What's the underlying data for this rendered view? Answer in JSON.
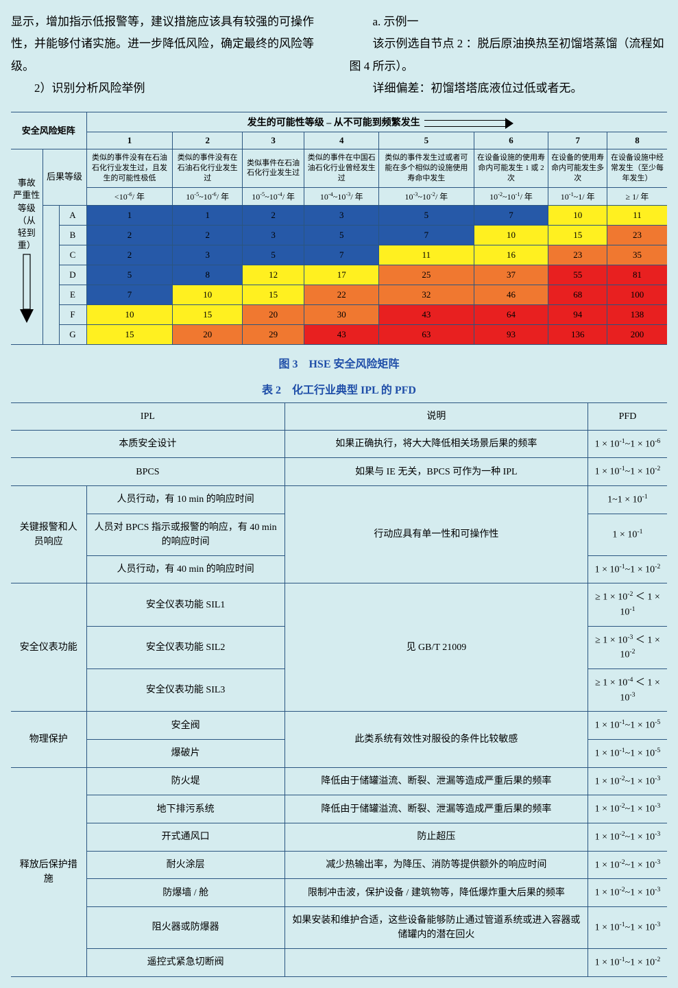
{
  "intro": {
    "left_p1": "显示，增加指示低报警等，建议措施应该具有较强的可操作性，并能够付诸实施。进一步降低风险，确定最终的风险等级。",
    "left_p2": "2）识别分析风险举例",
    "right_p1": "a. 示例一",
    "right_p2": "该示例选自节点 2 ：脱后原油换热至初馏塔蒸馏（流程如图 4 所示）。",
    "right_p3": "详细偏差：初馏塔塔底液位过低或者无。"
  },
  "matrix": {
    "corner_label": "安全风险矩阵",
    "top_header": "发生的可能性等级 – 从不可能到频繁发生",
    "col_nums": [
      "1",
      "2",
      "3",
      "4",
      "5",
      "6",
      "7",
      "8"
    ],
    "side_top_label": "后果等级",
    "side_axis_line1": "事故",
    "side_axis_line2": "严重性",
    "side_axis_line3": "等级（从",
    "side_axis_line4": "轻到重）",
    "descs": [
      "类似的事件没有在石油石化行业发生过，且发生的可能性极低",
      "类似的事件没有在石油石化行业发生过",
      "类似事件在石油石化行业发生过",
      "类似的事件在中国石油石化行业曾经发生过",
      "类似的事件发生过或者可能在多个相似的设施使用寿命中发生",
      "在设备设施的使用寿命内可能发生 1 或 2 次",
      "在设备的使用寿命内可能发生多次",
      "在设备设施中经常发生（至少每年发生）"
    ],
    "freqs": [
      "<10<sup>-6</sup>/ 年",
      "10<sup>-5</sup>~10<sup>-6</sup>/ 年",
      "10<sup>-5</sup>~10<sup>-4</sup>/ 年",
      "10<sup>-4</sup>~10<sup>-3</sup>/ 年",
      "10<sup>-3</sup>~10<sup>-2</sup>/ 年",
      "10<sup>-2</sup>~10<sup>-1</sup>/ 年",
      "10<sup>-1</sup>~1/ 年",
      "≥ 1/ 年"
    ],
    "row_labels": [
      "A",
      "B",
      "C",
      "D",
      "E",
      "F",
      "G"
    ],
    "cells": [
      [
        {
          "v": "1",
          "c": "#2659a8"
        },
        {
          "v": "1",
          "c": "#2659a8"
        },
        {
          "v": "2",
          "c": "#2659a8"
        },
        {
          "v": "3",
          "c": "#2659a8"
        },
        {
          "v": "5",
          "c": "#2659a8"
        },
        {
          "v": "7",
          "c": "#2659a8"
        },
        {
          "v": "10",
          "c": "#fff020"
        },
        {
          "v": "11",
          "c": "#fff020"
        }
      ],
      [
        {
          "v": "2",
          "c": "#2659a8"
        },
        {
          "v": "2",
          "c": "#2659a8"
        },
        {
          "v": "3",
          "c": "#2659a8"
        },
        {
          "v": "5",
          "c": "#2659a8"
        },
        {
          "v": "7",
          "c": "#2659a8"
        },
        {
          "v": "10",
          "c": "#fff020"
        },
        {
          "v": "15",
          "c": "#fff020"
        },
        {
          "v": "23",
          "c": "#f07830"
        }
      ],
      [
        {
          "v": "2",
          "c": "#2659a8"
        },
        {
          "v": "3",
          "c": "#2659a8"
        },
        {
          "v": "5",
          "c": "#2659a8"
        },
        {
          "v": "7",
          "c": "#2659a8"
        },
        {
          "v": "11",
          "c": "#fff020"
        },
        {
          "v": "16",
          "c": "#fff020"
        },
        {
          "v": "23",
          "c": "#f07830"
        },
        {
          "v": "35",
          "c": "#f07830"
        }
      ],
      [
        {
          "v": "5",
          "c": "#2659a8"
        },
        {
          "v": "8",
          "c": "#2659a8"
        },
        {
          "v": "12",
          "c": "#fff020"
        },
        {
          "v": "17",
          "c": "#fff020"
        },
        {
          "v": "25",
          "c": "#f07830"
        },
        {
          "v": "37",
          "c": "#f07830"
        },
        {
          "v": "55",
          "c": "#e82020"
        },
        {
          "v": "81",
          "c": "#e82020"
        }
      ],
      [
        {
          "v": "7",
          "c": "#2659a8"
        },
        {
          "v": "10",
          "c": "#fff020"
        },
        {
          "v": "15",
          "c": "#fff020"
        },
        {
          "v": "22",
          "c": "#f07830"
        },
        {
          "v": "32",
          "c": "#f07830"
        },
        {
          "v": "46",
          "c": "#f07830"
        },
        {
          "v": "68",
          "c": "#e82020"
        },
        {
          "v": "100",
          "c": "#e82020"
        }
      ],
      [
        {
          "v": "10",
          "c": "#fff020"
        },
        {
          "v": "15",
          "c": "#fff020"
        },
        {
          "v": "20",
          "c": "#f07830"
        },
        {
          "v": "30",
          "c": "#f07830"
        },
        {
          "v": "43",
          "c": "#e82020"
        },
        {
          "v": "64",
          "c": "#e82020"
        },
        {
          "v": "94",
          "c": "#e82020"
        },
        {
          "v": "138",
          "c": "#e82020"
        }
      ],
      [
        {
          "v": "15",
          "c": "#fff020"
        },
        {
          "v": "20",
          "c": "#f07830"
        },
        {
          "v": "29",
          "c": "#f07830"
        },
        {
          "v": "43",
          "c": "#e82020"
        },
        {
          "v": "63",
          "c": "#e82020"
        },
        {
          "v": "93",
          "c": "#e82020"
        },
        {
          "v": "136",
          "c": "#e82020"
        },
        {
          "v": "200",
          "c": "#e82020"
        }
      ]
    ],
    "caption": "图 3　HSE 安全风险矩阵"
  },
  "ipl": {
    "caption": "表 2　化工行业典型 IPL 的 PFD",
    "headers": {
      "ipl": "IPL",
      "desc": "说明",
      "pfd": "PFD"
    },
    "essential_safety": {
      "name": "本质安全设计",
      "desc": "如果正确执行，将大大降低相关场景后果的频率",
      "pfd": "1 × 10<sup>-1</sup>~1 × 10<sup>-6</sup>"
    },
    "bpcs": {
      "name": "BPCS",
      "desc": "如果与 IE 无关，BPCS 可作为一种 IPL",
      "pfd": "1 × 10<sup>-1</sup>~1 × 10<sup>-2</sup>"
    },
    "alarm": {
      "group": "关键报警和人员响应",
      "rows": [
        {
          "name": "人员行动，有 10 min 的响应时间",
          "pfd": "1~1 × 10<sup>-1</sup>"
        },
        {
          "name": "人员对 BPCS 指示或报警的响应，有 40 min 的响应时间",
          "pfd": "1 × 10<sup>-1</sup>"
        },
        {
          "name": "人员行动，有 40 min 的响应时间",
          "pfd": "1 × 10<sup>-1</sup>~1 × 10<sup>-2</sup>"
        }
      ],
      "desc": "行动应具有单一性和可操作性"
    },
    "sis": {
      "group": "安全仪表功能",
      "rows": [
        {
          "name": "安全仪表功能 SIL1",
          "pfd": "≥ 1 × 10<sup>-2</sup> ＜ 1 × 10<sup>-1</sup>"
        },
        {
          "name": "安全仪表功能 SIL2",
          "pfd": "≥ 1 × 10<sup>-3</sup> ＜ 1 × 10<sup>-2</sup>"
        },
        {
          "name": "安全仪表功能 SIL3",
          "pfd": "≥ 1 × 10<sup>-4</sup> ＜ 1 × 10<sup>-3</sup>"
        }
      ],
      "desc": "见 GB/T 21009"
    },
    "physical": {
      "group": "物理保护",
      "rows": [
        {
          "name": "安全阀",
          "pfd": "1 × 10<sup>-1</sup>~1 × 10<sup>-5</sup>"
        },
        {
          "name": "爆破片",
          "pfd": "1 × 10<sup>-1</sup>~1 × 10<sup>-5</sup>"
        }
      ],
      "desc": "此类系统有效性对服役的条件比较敏感"
    },
    "post_release": {
      "group": "释放后保护措施",
      "rows": [
        {
          "name": "防火堤",
          "desc": "降低由于储罐溢流、断裂、泄漏等造成严重后果的频率",
          "pfd": "1 × 10<sup>-2</sup>~1 × 10<sup>-3</sup>"
        },
        {
          "name": "地下排污系统",
          "desc": "降低由于储罐溢流、断裂、泄漏等造成严重后果的频率",
          "pfd": "1 × 10<sup>-2</sup>~1 × 10<sup>-3</sup>"
        },
        {
          "name": "开式通风口",
          "desc": "防止超压",
          "pfd": "1 × 10<sup>-2</sup>~1 × 10<sup>-3</sup>"
        },
        {
          "name": "耐火涂层",
          "desc": "减少热输出率，为降压、消防等提供额外的响应时间",
          "pfd": "1 × 10<sup>-2</sup>~1 × 10<sup>-3</sup>"
        },
        {
          "name": "防爆墙 / 舱",
          "desc": "限制冲击波，保护设备 / 建筑物等，降低爆炸重大后果的频率",
          "pfd": "1 × 10<sup>-2</sup>~1 × 10<sup>-3</sup>"
        },
        {
          "name": "阻火器或防爆器",
          "desc": "如果安装和维护合适，这些设备能够防止通过管道系统或进入容器或储罐内的潜在回火",
          "pfd": "1 × 10<sup>-1</sup>~1 × 10<sup>-3</sup>"
        },
        {
          "name": "遥控式紧急切断阀",
          "desc": "",
          "pfd": "1 × 10<sup>-1</sup>~1 × 10<sup>-2</sup>"
        }
      ]
    }
  }
}
